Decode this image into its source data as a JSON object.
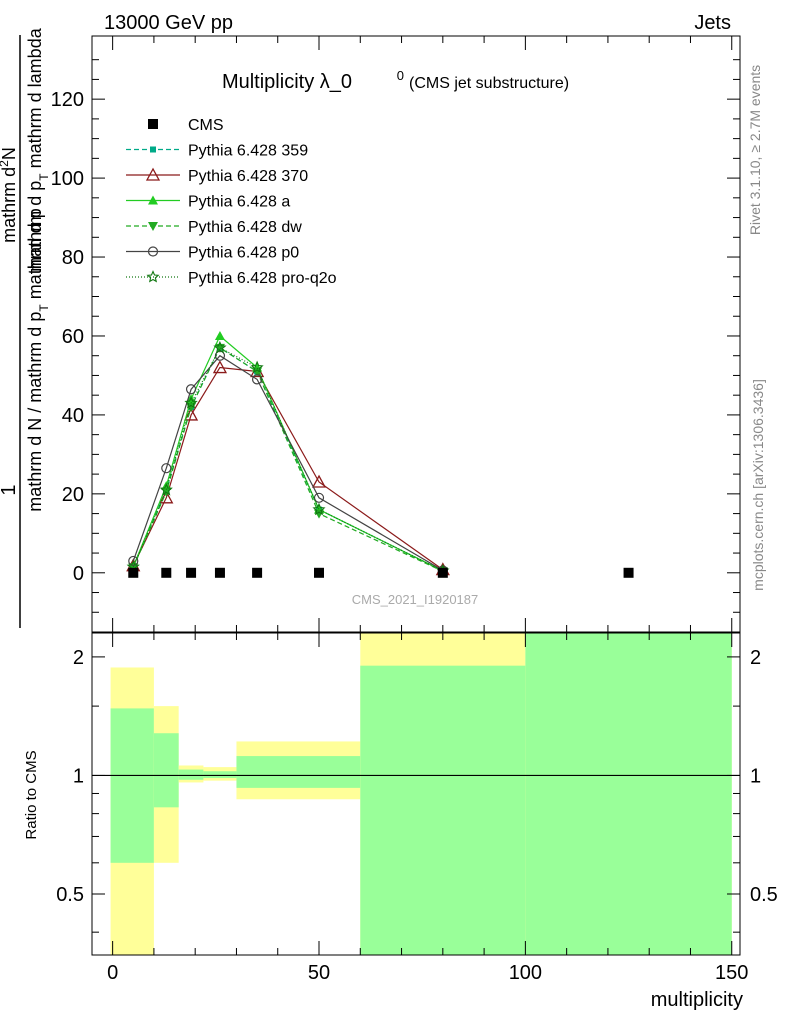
{
  "header": {
    "energy": "13000 GeV pp",
    "category": "Jets"
  },
  "side_labels": {
    "rivet": "Rivet 3.1.10, ≥ 2.7M events",
    "source": "mcplots.cern.ch [arXiv:1306.3436]"
  },
  "watermark": "CMS_2021_I1920187",
  "chart_data": [
    {
      "type": "line",
      "title": "Multiplicity λ_0",
      "title_sup": "0",
      "subtitle": "(CMS jet substructure)",
      "ylabel_num": "mathrm d",
      "ylabel_num_sup": "2",
      "ylabel_num_tail": "N",
      "ylabel_den": "mathrm d p",
      "ylabel_den_sub": "T",
      "ylabel_den_tail": " mathrm d lambda",
      "ylabel_prefix_num": "1",
      "ylabel_prefix_den": "mathrm d N / mathrm d p",
      "ylabel_prefix_den_sub": "T",
      "ylabel_prefix_den_tail": " mathrm d p",
      "ylabel_prefix_den_sub2": "T",
      "ylabel_prefix_den_tail2": " mathrm d lambda",
      "xlim": [
        -5,
        152
      ],
      "ylim": [
        -15,
        136
      ],
      "yticks": [
        0,
        20,
        40,
        60,
        80,
        100,
        120
      ],
      "legend_position": "top-left",
      "series": [
        {
          "name": "CMS",
          "color": "#000000",
          "marker": "square",
          "x": [
            5,
            13,
            19,
            26,
            35,
            50,
            80,
            125
          ],
          "y": [
            0,
            0,
            0,
            0,
            0,
            0,
            0,
            0
          ]
        },
        {
          "name": "Pythia 6.428 359",
          "color": "#00aa88",
          "marker": "small-square",
          "dash": "5,3",
          "x": [
            5,
            13,
            19,
            26,
            35,
            50,
            80
          ],
          "y": [
            1.5,
            21,
            42,
            57,
            51,
            16,
            0.5
          ]
        },
        {
          "name": "Pythia 6.428 370",
          "color": "#8b1a1a",
          "marker": "open-triangle-up",
          "dash": "",
          "x": [
            5,
            13,
            19,
            26,
            35,
            50,
            80
          ],
          "y": [
            1.8,
            19,
            40,
            52,
            51,
            23,
            0.8
          ]
        },
        {
          "name": "Pythia 6.428 a",
          "color": "#22cc22",
          "marker": "triangle-up",
          "dash": "",
          "x": [
            5,
            13,
            19,
            26,
            35,
            50,
            80
          ],
          "y": [
            1.6,
            22,
            44,
            60,
            52,
            16,
            0.5
          ]
        },
        {
          "name": "Pythia 6.428 dw",
          "color": "#22aa22",
          "marker": "triangle-down",
          "dash": "5,3",
          "x": [
            5,
            13,
            19,
            26,
            35,
            50,
            80
          ],
          "y": [
            1.4,
            20.5,
            42,
            57,
            51,
            15,
            0.4
          ]
        },
        {
          "name": "Pythia 6.428 p0",
          "color": "#444444",
          "marker": "open-circle",
          "dash": "",
          "x": [
            5,
            13,
            19,
            26,
            35,
            50,
            80
          ],
          "y": [
            3,
            26.5,
            46.5,
            55,
            49,
            19,
            0.6
          ]
        },
        {
          "name": "Pythia 6.428 pro-q2o",
          "color": "#117711",
          "marker": "star",
          "dash": "1,2",
          "x": [
            5,
            13,
            19,
            26,
            35,
            50,
            80
          ],
          "y": [
            1.5,
            21,
            43,
            57,
            52,
            16,
            0.5
          ]
        }
      ]
    },
    {
      "type": "area",
      "ylabel": "Ratio to CMS",
      "xlabel": "multiplicity",
      "xlim": [
        -5,
        152
      ],
      "ylim": [
        0.35,
        2.3
      ],
      "yticks": [
        0.5,
        1,
        2
      ],
      "xticks": [
        0,
        50,
        100,
        150
      ],
      "reference_line": 1,
      "bands": [
        {
          "x0": -0.5,
          "x1": 10,
          "yellow": [
            0.35,
            1.88
          ],
          "green": [
            0.6,
            1.48
          ]
        },
        {
          "x0": 10,
          "x1": 16,
          "yellow": [
            0.6,
            1.5
          ],
          "green": [
            0.83,
            1.28
          ]
        },
        {
          "x0": 16,
          "x1": 22,
          "yellow": [
            0.96,
            1.06
          ],
          "green": [
            0.975,
            1.035
          ]
        },
        {
          "x0": 22,
          "x1": 30,
          "yellow": [
            0.97,
            1.05
          ],
          "green": [
            0.985,
            1.025
          ]
        },
        {
          "x0": 30,
          "x1": 60,
          "yellow": [
            0.87,
            1.22
          ],
          "green": [
            0.93,
            1.12
          ]
        },
        {
          "x0": 60,
          "x1": 100,
          "yellow": [
            0.35,
            2.3
          ],
          "green": [
            0.35,
            1.9
          ]
        },
        {
          "x0": 100,
          "x1": 150,
          "yellow": [
            0.35,
            2.3
          ],
          "green": [
            0.35,
            2.3
          ]
        }
      ]
    }
  ]
}
